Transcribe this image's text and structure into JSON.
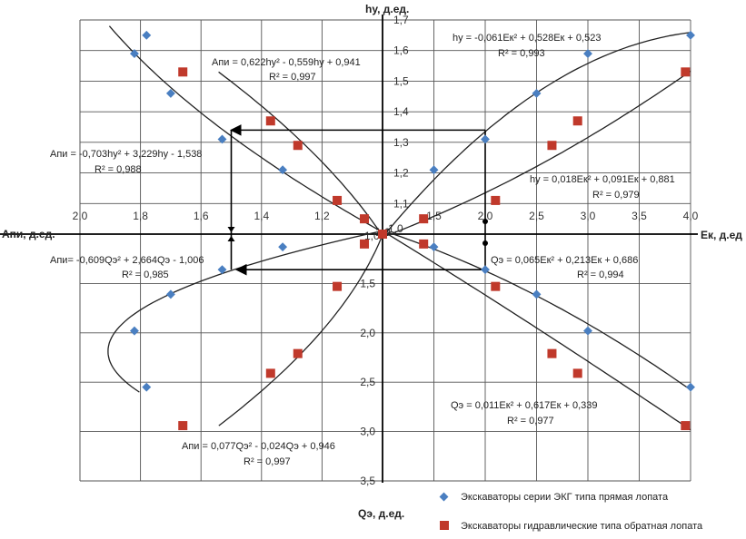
{
  "chart_data": {
    "type": "scatter",
    "axes": {
      "top_label": "hу, д.ед.",
      "left_label": "Апи, д.ед.",
      "right_label": "Ек, д.ед",
      "bottom_label": "Qэ, д.ед.",
      "ek_ticks": [
        "1,5",
        "2,0",
        "2,5",
        "3,0",
        "3,5",
        "4,0"
      ],
      "hy_ticks": [
        "1,7",
        "1,6",
        "1,5",
        "1,4",
        "1,3",
        "1,2",
        "1,1"
      ],
      "api_ticks": [
        "2,0",
        "1,8",
        "1,6",
        "1,4",
        "1,2"
      ],
      "q_ticks": [
        "1,5",
        "2,0",
        "2,5",
        "3,0",
        "3,5"
      ],
      "origin_labels": [
        "1,0",
        "1,0",
        "1,0"
      ],
      "ek_range": [
        1.0,
        4.0
      ],
      "hy_range": [
        1.0,
        1.7
      ],
      "api_range": [
        1.0,
        2.0
      ],
      "q_range": [
        1.0,
        3.5
      ],
      "grid": true
    },
    "series": [
      {
        "name": "Экскаваторы серии ЭКГ типа прямая лопата",
        "color": "#4a7fc1",
        "marker": "diamond",
        "ek_hy": [
          [
            1.0,
            1.0
          ],
          [
            1.5,
            1.21
          ],
          [
            2.0,
            1.31
          ],
          [
            2.5,
            1.46
          ],
          [
            3.0,
            1.59
          ],
          [
            4.0,
            1.65
          ]
        ],
        "ek_q": [
          [
            1.0,
            1.0
          ],
          [
            1.5,
            1.13
          ],
          [
            2.0,
            1.36
          ],
          [
            2.5,
            1.61
          ],
          [
            3.0,
            1.98
          ],
          [
            4.0,
            2.55
          ]
        ],
        "api_hy": [
          [
            1.0,
            1.0
          ],
          [
            1.33,
            1.21
          ],
          [
            1.53,
            1.31
          ],
          [
            1.7,
            1.46
          ],
          [
            1.78,
            1.65
          ],
          [
            1.82,
            1.59
          ]
        ],
        "api_q": [
          [
            1.0,
            1.0
          ],
          [
            1.33,
            1.13
          ],
          [
            1.53,
            1.36
          ],
          [
            1.7,
            1.61
          ],
          [
            1.82,
            1.98
          ],
          [
            1.78,
            2.55
          ]
        ]
      },
      {
        "name": "Экскаваторы гидравлические типа обратная лопата",
        "color": "#c0392b",
        "marker": "square",
        "ek_hy": [
          [
            1.0,
            1.0
          ],
          [
            1.4,
            1.05
          ],
          [
            2.1,
            1.11
          ],
          [
            2.65,
            1.29
          ],
          [
            2.9,
            1.37
          ],
          [
            3.95,
            1.53
          ]
        ],
        "ek_q": [
          [
            1.0,
            1.0
          ],
          [
            1.4,
            1.1
          ],
          [
            2.1,
            1.53
          ],
          [
            2.65,
            2.21
          ],
          [
            2.9,
            2.41
          ],
          [
            3.95,
            2.94
          ]
        ],
        "api_hy": [
          [
            1.0,
            1.0
          ],
          [
            1.06,
            1.05
          ],
          [
            1.15,
            1.11
          ],
          [
            1.28,
            1.29
          ],
          [
            1.37,
            1.37
          ],
          [
            1.66,
            1.53
          ]
        ],
        "api_q": [
          [
            1.0,
            1.0
          ],
          [
            1.06,
            1.1
          ],
          [
            1.15,
            1.53
          ],
          [
            1.28,
            2.21
          ],
          [
            1.37,
            2.41
          ],
          [
            1.66,
            2.94
          ]
        ]
      }
    ],
    "trendlines": [
      {
        "quadrant": "ek_hy",
        "series": 0,
        "coef": [
          -0.061,
          0.528,
          0.523
        ],
        "equation": "hу = -0,061Ек² + 0,528Ек + 0,523",
        "r2": "R² = 0,993"
      },
      {
        "quadrant": "ek_hy",
        "series": 1,
        "coef": [
          0.018,
          0.091,
          0.881
        ],
        "equation": "hу = 0,018Ек² + 0,091Ек + 0,881",
        "r2": "R² = 0,979"
      },
      {
        "quadrant": "ek_q",
        "series": 0,
        "coef": [
          0.065,
          0.213,
          0.686
        ],
        "equation": "Qэ = 0,065Ек² + 0,213Ек + 0,686",
        "r2": "R² = 0,994"
      },
      {
        "quadrant": "ek_q",
        "series": 1,
        "coef": [
          0.011,
          0.617,
          0.339
        ],
        "equation": "Qэ = 0,011Ек² + 0,617Ек + 0,339",
        "r2": "R² = 0,977"
      },
      {
        "quadrant": "api_hy",
        "series": 1,
        "coef": [
          0.622,
          -0.559,
          0.941
        ],
        "equation": "Апи = 0,622hу² - 0,559hу + 0,941",
        "r2": "R² = 0,997"
      },
      {
        "quadrant": "api_hy",
        "series": 0,
        "coef": [
          -0.703,
          3.229,
          -1.538
        ],
        "equation": "Апи = -0,703hу² + 3,229hу - 1,538",
        "r2": "R² = 0,988"
      },
      {
        "quadrant": "api_q",
        "series": 0,
        "coef": [
          -0.609,
          2.664,
          -1.006
        ],
        "equation": "Апи= -0,609Qэ² + 2,664Qэ - 1,006",
        "r2": "R² = 0,985"
      },
      {
        "quadrant": "api_q",
        "series": 1,
        "coef": [
          0.077,
          -0.024,
          0.946
        ],
        "equation": "Апи = 0,077Qэ² - 0,024Qэ + 0,946",
        "r2": "R² = 0,997"
      }
    ],
    "guide_example": {
      "ek": 2.0,
      "hy": 1.34,
      "q": 1.36,
      "api": 1.5
    },
    "legend_position": "bottom-right"
  }
}
